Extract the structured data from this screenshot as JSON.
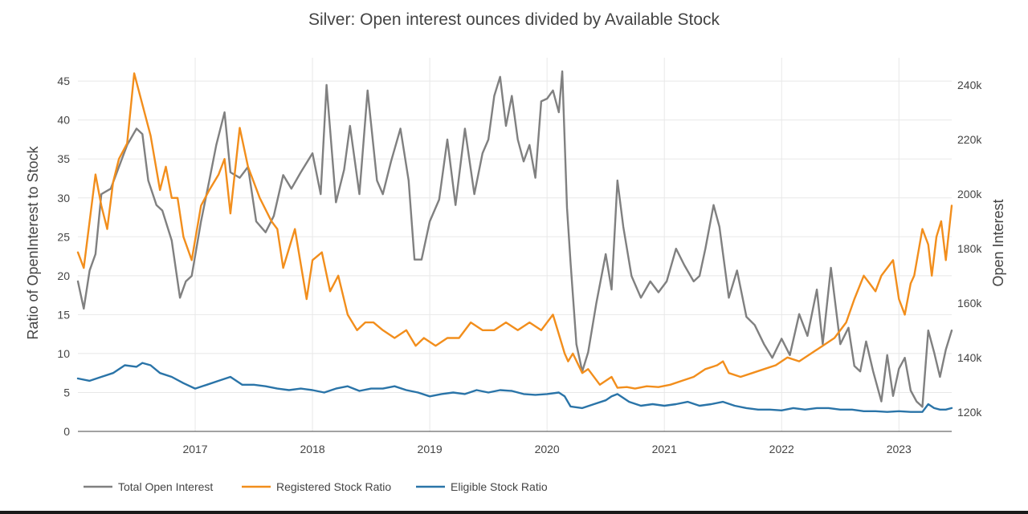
{
  "chart_data": {
    "type": "line",
    "title": "Silver: Open interest ounces divided by Available Stock",
    "ylabel": "Ratio of OpenInterest to Stock",
    "y2label": "Open Interest",
    "xlim": [
      2016.0,
      2023.45
    ],
    "ylim": [
      0,
      48
    ],
    "y2lim": [
      113000,
      250000
    ],
    "x_ticks": [
      2017,
      2018,
      2019,
      2020,
      2021,
      2022,
      2023
    ],
    "x_tick_labels": [
      "2017",
      "2018",
      "2019",
      "2020",
      "2021",
      "2022",
      "2023"
    ],
    "y_ticks": [
      0,
      5,
      10,
      15,
      20,
      25,
      30,
      35,
      40,
      45
    ],
    "y_tick_labels": [
      "0",
      "5",
      "10",
      "15",
      "20",
      "25",
      "30",
      "35",
      "40",
      "45"
    ],
    "y2_ticks": [
      120000,
      140000,
      160000,
      180000,
      200000,
      220000,
      240000
    ],
    "y2_tick_labels": [
      "120k",
      "140k",
      "160k",
      "180k",
      "200k",
      "220k",
      "240k"
    ],
    "grid": true,
    "legend_position": "bottom-left",
    "series": [
      {
        "name": "Total Open Interest",
        "axis": "right",
        "color": "#808080",
        "x": [
          2016.0,
          2016.05,
          2016.1,
          2016.15,
          2016.2,
          2016.28,
          2016.35,
          2016.42,
          2016.5,
          2016.55,
          2016.6,
          2016.67,
          2016.72,
          2016.8,
          2016.87,
          2016.92,
          2016.97,
          2017.05,
          2017.12,
          2017.18,
          2017.25,
          2017.3,
          2017.38,
          2017.45,
          2017.52,
          2017.6,
          2017.67,
          2017.75,
          2017.82,
          2017.9,
          2018.0,
          2018.07,
          2018.12,
          2018.2,
          2018.27,
          2018.32,
          2018.4,
          2018.47,
          2018.55,
          2018.6,
          2018.67,
          2018.75,
          2018.82,
          2018.87,
          2018.93,
          2019.0,
          2019.08,
          2019.15,
          2019.22,
          2019.3,
          2019.38,
          2019.45,
          2019.5,
          2019.55,
          2019.6,
          2019.65,
          2019.7,
          2019.75,
          2019.8,
          2019.85,
          2019.9,
          2019.95,
          2020.0,
          2020.05,
          2020.1,
          2020.13,
          2020.17,
          2020.2,
          2020.25,
          2020.3,
          2020.35,
          2020.42,
          2020.5,
          2020.55,
          2020.6,
          2020.65,
          2020.72,
          2020.8,
          2020.88,
          2020.95,
          2021.02,
          2021.1,
          2021.17,
          2021.25,
          2021.3,
          2021.35,
          2021.42,
          2021.47,
          2021.55,
          2021.62,
          2021.7,
          2021.77,
          2021.85,
          2021.92,
          2022.0,
          2022.07,
          2022.15,
          2022.22,
          2022.3,
          2022.35,
          2022.42,
          2022.5,
          2022.57,
          2022.62,
          2022.67,
          2022.72,
          2022.78,
          2022.85,
          2022.9,
          2022.95,
          2023.0,
          2023.05,
          2023.1,
          2023.15,
          2023.2,
          2023.25,
          2023.3,
          2023.35,
          2023.4,
          2023.45
        ],
        "values": [
          168000,
          158000,
          172000,
          178000,
          200000,
          202000,
          210000,
          218000,
          224000,
          222000,
          205000,
          196000,
          194000,
          183000,
          162000,
          168000,
          170000,
          190000,
          205000,
          218000,
          230000,
          208000,
          206000,
          210000,
          190000,
          186000,
          192000,
          207000,
          202000,
          208000,
          215000,
          200000,
          240000,
          197000,
          209000,
          225000,
          200000,
          238000,
          205000,
          200000,
          212000,
          224000,
          205000,
          176000,
          176000,
          190000,
          198000,
          220000,
          196000,
          224000,
          200000,
          215000,
          220000,
          236000,
          243000,
          225000,
          236000,
          220000,
          212000,
          218000,
          206000,
          234000,
          235000,
          238000,
          230000,
          245000,
          195000,
          175000,
          145000,
          135000,
          142000,
          160000,
          178000,
          165000,
          205000,
          188000,
          170000,
          162000,
          168000,
          164000,
          168000,
          180000,
          174000,
          168000,
          170000,
          180000,
          196000,
          188000,
          162000,
          172000,
          155000,
          152000,
          145000,
          140000,
          147000,
          141000,
          156000,
          148000,
          165000,
          145000,
          173000,
          145000,
          151000,
          137000,
          135000,
          146000,
          135000,
          124000,
          141000,
          126000,
          136000,
          140000,
          128000,
          124000,
          122000,
          150000,
          142000,
          133000,
          143000,
          150000
        ]
      },
      {
        "name": "Registered Stock Ratio",
        "axis": "left",
        "color": "#f28e1c",
        "x": [
          2016.0,
          2016.05,
          2016.1,
          2016.15,
          2016.2,
          2016.25,
          2016.3,
          2016.35,
          2016.42,
          2016.48,
          2016.55,
          2016.62,
          2016.7,
          2016.75,
          2016.8,
          2016.85,
          2016.9,
          2016.97,
          2017.05,
          2017.12,
          2017.2,
          2017.25,
          2017.3,
          2017.38,
          2017.45,
          2017.55,
          2017.65,
          2017.7,
          2017.75,
          2017.85,
          2017.95,
          2018.0,
          2018.08,
          2018.15,
          2018.22,
          2018.3,
          2018.38,
          2018.45,
          2018.52,
          2018.6,
          2018.7,
          2018.8,
          2018.88,
          2018.95,
          2019.05,
          2019.15,
          2019.25,
          2019.35,
          2019.45,
          2019.55,
          2019.65,
          2019.75,
          2019.85,
          2019.95,
          2020.05,
          2020.15,
          2020.18,
          2020.22,
          2020.3,
          2020.35,
          2020.45,
          2020.55,
          2020.6,
          2020.68,
          2020.75,
          2020.85,
          2020.95,
          2021.05,
          2021.15,
          2021.25,
          2021.35,
          2021.45,
          2021.5,
          2021.55,
          2021.65,
          2021.75,
          2021.85,
          2021.95,
          2022.05,
          2022.15,
          2022.25,
          2022.35,
          2022.45,
          2022.55,
          2022.62,
          2022.7,
          2022.75,
          2022.8,
          2022.85,
          2022.9,
          2022.95,
          2023.0,
          2023.05,
          2023.1,
          2023.13,
          2023.2,
          2023.25,
          2023.28,
          2023.32,
          2023.36,
          2023.4,
          2023.45
        ],
        "values": [
          23,
          21,
          27,
          33,
          29,
          26,
          32,
          35,
          37,
          46,
          42,
          38,
          31,
          34,
          30,
          30,
          25,
          22,
          29,
          31,
          33,
          35,
          28,
          39,
          34,
          30,
          27,
          26,
          21,
          26,
          17,
          22,
          23,
          18,
          20,
          15,
          13,
          14,
          14,
          13,
          12,
          13,
          11,
          12,
          11,
          12,
          12,
          14,
          13,
          13,
          14,
          13,
          14,
          13,
          15,
          10,
          9,
          10,
          7.5,
          8,
          6,
          7,
          5.6,
          5.7,
          5.5,
          5.8,
          5.7,
          6,
          6.5,
          7,
          8,
          8.5,
          9,
          7.5,
          7,
          7.5,
          8,
          8.5,
          9.5,
          9,
          10,
          11,
          12,
          14,
          17,
          20,
          19,
          18,
          20,
          21,
          22,
          17,
          15,
          19,
          20,
          26,
          24,
          20,
          25,
          27,
          22,
          29
        ]
      },
      {
        "name": "Eligible Stock Ratio",
        "axis": "left",
        "color": "#2a74a8",
        "x": [
          2016.0,
          2016.1,
          2016.2,
          2016.3,
          2016.4,
          2016.5,
          2016.55,
          2016.62,
          2016.7,
          2016.8,
          2016.9,
          2017.0,
          2017.1,
          2017.2,
          2017.3,
          2017.4,
          2017.5,
          2017.6,
          2017.7,
          2017.8,
          2017.9,
          2018.0,
          2018.1,
          2018.2,
          2018.3,
          2018.4,
          2018.5,
          2018.6,
          2018.7,
          2018.8,
          2018.9,
          2019.0,
          2019.1,
          2019.2,
          2019.3,
          2019.4,
          2019.5,
          2019.6,
          2019.7,
          2019.8,
          2019.9,
          2020.0,
          2020.1,
          2020.15,
          2020.2,
          2020.3,
          2020.4,
          2020.5,
          2020.55,
          2020.6,
          2020.7,
          2020.8,
          2020.9,
          2021.0,
          2021.1,
          2021.2,
          2021.3,
          2021.4,
          2021.5,
          2021.6,
          2021.7,
          2021.8,
          2021.9,
          2022.0,
          2022.1,
          2022.2,
          2022.3,
          2022.4,
          2022.5,
          2022.6,
          2022.7,
          2022.8,
          2022.9,
          2023.0,
          2023.1,
          2023.2,
          2023.25,
          2023.3,
          2023.35,
          2023.4,
          2023.45
        ],
        "values": [
          6.8,
          6.5,
          7,
          7.5,
          8.5,
          8.3,
          8.8,
          8.5,
          7.5,
          7,
          6.2,
          5.5,
          6,
          6.5,
          7,
          6,
          6,
          5.8,
          5.5,
          5.3,
          5.5,
          5.3,
          5,
          5.5,
          5.8,
          5.2,
          5.5,
          5.5,
          5.8,
          5.3,
          5,
          4.5,
          4.8,
          5,
          4.8,
          5.3,
          5,
          5.3,
          5.2,
          4.8,
          4.7,
          4.8,
          5,
          4.5,
          3.2,
          3,
          3.5,
          4,
          4.5,
          4.8,
          3.8,
          3.3,
          3.5,
          3.3,
          3.5,
          3.8,
          3.3,
          3.5,
          3.8,
          3.3,
          3,
          2.8,
          2.8,
          2.7,
          3,
          2.8,
          3,
          3,
          2.8,
          2.8,
          2.6,
          2.6,
          2.5,
          2.6,
          2.5,
          2.5,
          3.5,
          3,
          2.8,
          2.8,
          3
        ]
      }
    ]
  }
}
